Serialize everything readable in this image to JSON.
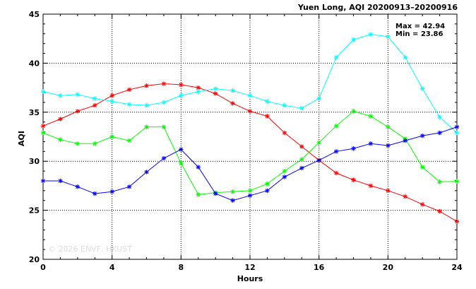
{
  "chart_data": {
    "type": "line",
    "title": "Yuen Long, AQI 20200913–20200916",
    "xlabel": "Hours",
    "ylabel": "AQI",
    "xlim": [
      0,
      24
    ],
    "ylim": [
      20,
      45
    ],
    "x_ticks": [
      "0",
      "4",
      "8",
      "12",
      "16",
      "20",
      "24"
    ],
    "y_ticks": [
      "20",
      "25",
      "30",
      "35",
      "40",
      "45"
    ],
    "grid": true,
    "stats": {
      "max": "Max = 42.94",
      "min": "Min = 23.86"
    },
    "watermark": "© 2026 ENVF, HKUST",
    "x": [
      0,
      1,
      2,
      3,
      4,
      5,
      6,
      7,
      8,
      9,
      10,
      11,
      12,
      13,
      14,
      15,
      16,
      17,
      18,
      19,
      20,
      21,
      22,
      23,
      24
    ],
    "series": [
      {
        "color": "#ff0000",
        "values": [
          33.6,
          34.3,
          35.1,
          35.7,
          36.7,
          37.3,
          37.7,
          37.9,
          37.8,
          37.5,
          36.9,
          35.9,
          35.1,
          34.6,
          32.9,
          31.5,
          30.1,
          28.8,
          28.1,
          27.5,
          27.0,
          26.4,
          25.6,
          24.9,
          23.86
        ]
      },
      {
        "color": "#00ff00",
        "values": [
          32.9,
          32.2,
          31.8,
          31.8,
          32.5,
          32.1,
          33.5,
          33.5,
          29.8,
          26.6,
          26.8,
          26.9,
          27.0,
          27.7,
          29.0,
          30.2,
          31.9,
          33.6,
          35.1,
          34.6,
          33.5,
          32.3,
          29.4,
          27.9,
          27.95
        ]
      },
      {
        "color": "#00ffff",
        "values": [
          37.1,
          36.7,
          36.8,
          36.4,
          36.1,
          35.8,
          35.7,
          36.0,
          36.7,
          37.1,
          37.4,
          37.2,
          36.7,
          36.1,
          35.7,
          35.4,
          36.4,
          40.6,
          42.4,
          42.94,
          42.7,
          40.6,
          37.4,
          34.5,
          32.9
        ]
      },
      {
        "color": "#0000ff",
        "values": [
          28.0,
          28.0,
          27.4,
          26.7,
          26.9,
          27.4,
          28.9,
          30.3,
          31.2,
          29.4,
          26.7,
          26.0,
          26.5,
          27.0,
          28.4,
          29.3,
          30.1,
          31.0,
          31.3,
          31.8,
          31.6,
          32.1,
          32.6,
          32.9,
          33.5
        ]
      }
    ]
  }
}
